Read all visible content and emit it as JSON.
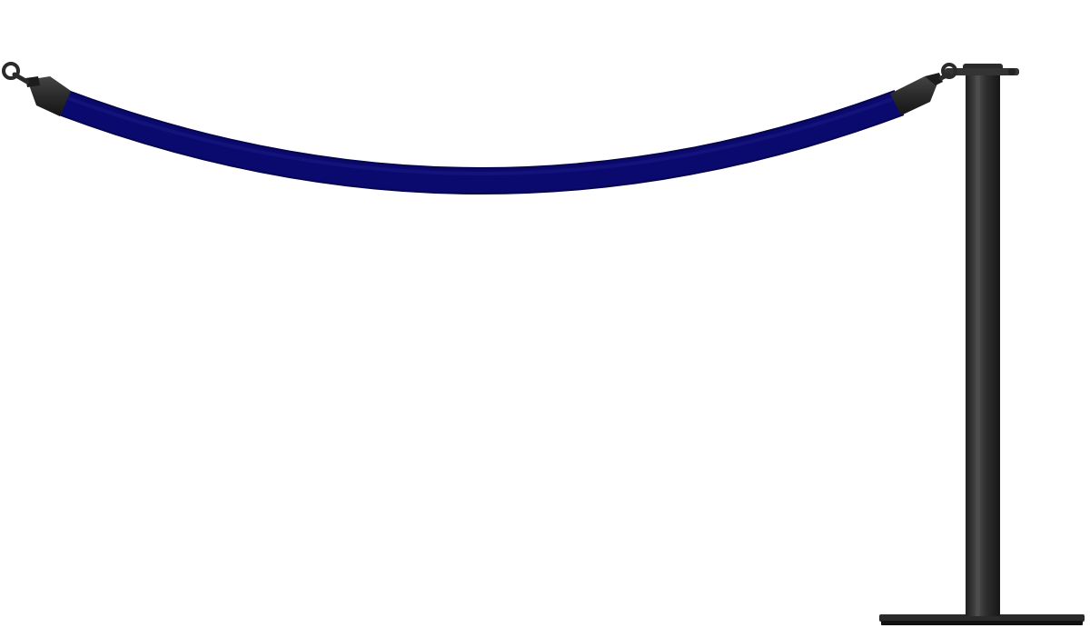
{
  "scene": {
    "background_color": "#ffffff",
    "rope_color": "#0a0a6e",
    "rope_edge_color": "#050550",
    "rope_end_color": "#2a2a2a",
    "post_color": "#2b2b2b",
    "post_highlight_color": "#4a4a4a",
    "base_color": "#1f1f1f",
    "hook_color": "#3a3a3a"
  },
  "objects": {
    "rope_icon": "velvet-rope",
    "post_icon": "stanchion-post",
    "hook_icon": "snap-hook"
  }
}
